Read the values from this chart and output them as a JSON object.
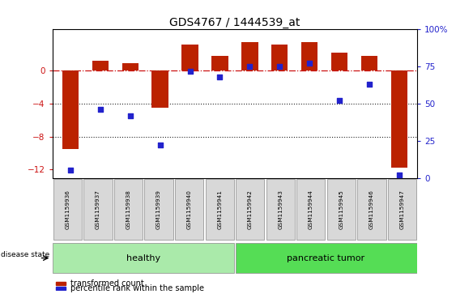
{
  "title": "GDS4767 / 1444539_at",
  "samples": [
    "GSM1159936",
    "GSM1159937",
    "GSM1159938",
    "GSM1159939",
    "GSM1159940",
    "GSM1159941",
    "GSM1159942",
    "GSM1159943",
    "GSM1159944",
    "GSM1159945",
    "GSM1159946",
    "GSM1159947"
  ],
  "red_values": [
    -9.5,
    1.2,
    0.9,
    -4.5,
    3.2,
    1.8,
    3.5,
    3.2,
    3.5,
    2.2,
    1.8,
    -11.8
  ],
  "blue_values": [
    5,
    46,
    42,
    22,
    72,
    68,
    75,
    75,
    77,
    52,
    63,
    2
  ],
  "ylim_left": [
    -13,
    5
  ],
  "ylim_right": [
    0,
    100
  ],
  "yticks_left": [
    0,
    -4,
    -8,
    -12
  ],
  "yticks_right": [
    0,
    25,
    50,
    75,
    100
  ],
  "healthy_count": 6,
  "tumor_count": 6,
  "healthy_label": "healthy",
  "tumor_label": "pancreatic tumor",
  "disease_state_label": "disease state",
  "legend_red": "transformed count",
  "legend_blue": "percentile rank within the sample",
  "bar_color": "#bb2200",
  "dot_color": "#2222cc",
  "healthy_color": "#aaeaaa",
  "tumor_color": "#55dd55",
  "bg_color": "#ffffff",
  "hline_color": "#cc1111",
  "dotted_line_color": "#222222",
  "tick_label_color_left": "#cc1111",
  "tick_label_color_right": "#2222cc",
  "xlim": [
    -0.6,
    11.6
  ]
}
